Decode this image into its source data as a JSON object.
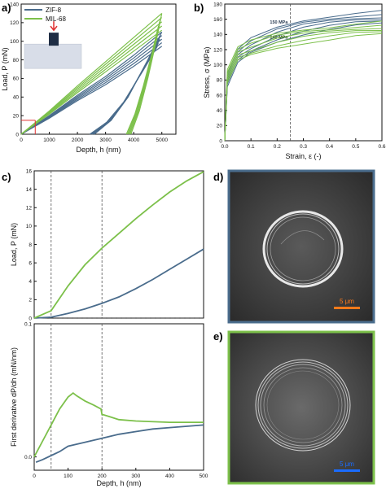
{
  "colors": {
    "zif": "#4a6c8c",
    "mil": "#7cc04a",
    "ref": "#e03030",
    "axis": "#111111"
  },
  "panel_labels": {
    "a": "a)",
    "b": "b)",
    "c": "c)",
    "d": "d)",
    "e": "e)"
  },
  "images": {
    "d": {
      "scale_bar": "5 μm",
      "frame_color": "#4a6c8c",
      "bar_color": "#ff7a1a"
    },
    "e": {
      "scale_bar": "5 μm",
      "frame_color": "#7cc04a",
      "bar_color": "#1a6cff"
    }
  },
  "chart_data": [
    {
      "id": "a",
      "type": "line",
      "xlabel": "Depth, h (nm)",
      "ylabel": "Load, P (mN)",
      "xlim": [
        0,
        5500
      ],
      "ylim": [
        0,
        140
      ],
      "xticks": [
        0,
        1000,
        2000,
        3000,
        4000,
        5000
      ],
      "yticks": [
        0,
        20,
        40,
        60,
        80,
        100,
        120,
        140
      ],
      "legend": {
        "placement": "top-left",
        "entries": [
          "ZIF-8",
          "MIL-68"
        ]
      },
      "inset": "indenter-schematic",
      "series": [
        {
          "name": "ZIF-8",
          "color_key": "zif",
          "loading": [
            [
              0,
              0
            ],
            [
              1000,
              20
            ],
            [
              2000,
              42
            ],
            [
              3000,
              62
            ],
            [
              4000,
              85
            ],
            [
              5000,
              110
            ]
          ],
          "unloading": [
            [
              5000,
              110
            ],
            [
              4500,
              80
            ],
            [
              3800,
              40
            ],
            [
              3200,
              15
            ],
            [
              2600,
              0
            ]
          ]
        },
        {
          "name": "MIL-68",
          "color_key": "mil",
          "loading": [
            [
              0,
              0
            ],
            [
              1000,
              25
            ],
            [
              2000,
              52
            ],
            [
              3000,
              78
            ],
            [
              4000,
              104
            ],
            [
              5000,
              130
            ]
          ],
          "unloading": [
            [
              5000,
              130
            ],
            [
              4800,
              100
            ],
            [
              4500,
              60
            ],
            [
              4200,
              25
            ],
            [
              3900,
              0
            ]
          ]
        }
      ]
    },
    {
      "id": "b",
      "type": "line",
      "xlabel": "Strain, ε (-)",
      "ylabel": "Stress, σ (MPa)",
      "xlim": [
        0,
        0.6
      ],
      "ylim": [
        0,
        180
      ],
      "xticks": [
        0.0,
        0.1,
        0.2,
        0.3,
        0.4,
        0.5,
        0.6
      ],
      "yticks": [
        0,
        20,
        40,
        60,
        80,
        100,
        120,
        140,
        160,
        180
      ],
      "annotations": [
        {
          "text": "150 MPa",
          "x": 0.25,
          "y": 150
        },
        {
          "text": "140 MPa",
          "x": 0.25,
          "y": 140
        }
      ],
      "dashed_x": 0.25,
      "series": [
        {
          "name": "ZIF-8",
          "color_key": "zif",
          "points": [
            [
              0,
              0
            ],
            [
              0.01,
              80
            ],
            [
              0.05,
              112
            ],
            [
              0.1,
              125
            ],
            [
              0.2,
              140
            ],
            [
              0.3,
              150
            ],
            [
              0.4,
              156
            ],
            [
              0.5,
              160
            ],
            [
              0.6,
              162
            ]
          ]
        },
        {
          "name": "MIL-68",
          "color_key": "mil",
          "points": [
            [
              0,
              0
            ],
            [
              0.01,
              85
            ],
            [
              0.05,
              115
            ],
            [
              0.1,
              122
            ],
            [
              0.2,
              132
            ],
            [
              0.3,
              138
            ],
            [
              0.4,
              142
            ],
            [
              0.5,
              146
            ],
            [
              0.6,
              148
            ]
          ]
        }
      ]
    },
    {
      "id": "c-top",
      "type": "line",
      "xlabel": "",
      "ylabel": "Load, P (mN)",
      "xlim": [
        0,
        500
      ],
      "ylim": [
        0,
        16
      ],
      "yticks": [
        0,
        2,
        4,
        6,
        8,
        10,
        12,
        14,
        16
      ],
      "dashed_x": [
        50,
        200
      ],
      "series": [
        {
          "name": "ZIF-8",
          "color_key": "zif",
          "points": [
            [
              0,
              0
            ],
            [
              50,
              0.1
            ],
            [
              100,
              0.5
            ],
            [
              150,
              1.0
            ],
            [
              200,
              1.6
            ],
            [
              250,
              2.3
            ],
            [
              300,
              3.2
            ],
            [
              350,
              4.2
            ],
            [
              400,
              5.3
            ],
            [
              450,
              6.4
            ],
            [
              500,
              7.5
            ]
          ]
        },
        {
          "name": "MIL-68",
          "color_key": "mil",
          "points": [
            [
              0,
              0
            ],
            [
              50,
              0.8
            ],
            [
              100,
              3.5
            ],
            [
              150,
              5.8
            ],
            [
              200,
              7.6
            ],
            [
              250,
              9.2
            ],
            [
              300,
              10.8
            ],
            [
              350,
              12.3
            ],
            [
              400,
              13.7
            ],
            [
              450,
              14.9
            ],
            [
              500,
              15.9
            ]
          ]
        }
      ]
    },
    {
      "id": "c-bottom",
      "type": "line",
      "xlabel": "Depth, h (nm)",
      "ylabel": "First derivative dP/dh (mN/nm)",
      "xlim": [
        0,
        500
      ],
      "ylim": [
        -0.01,
        0.1
      ],
      "xticks": [
        0,
        100,
        200,
        300,
        400,
        500
      ],
      "yticks": [
        0.0,
        0.1
      ],
      "dashed_x": [
        50,
        200
      ],
      "series": [
        {
          "name": "ZIF-8",
          "color_key": "zif",
          "points": [
            [
              5,
              -0.004
            ],
            [
              25,
              -0.002
            ],
            [
              50,
              0.001
            ],
            [
              75,
              0.004
            ],
            [
              100,
              0.008
            ],
            [
              150,
              0.011
            ],
            [
              200,
              0.014
            ],
            [
              250,
              0.017
            ],
            [
              300,
              0.019
            ],
            [
              350,
              0.021
            ],
            [
              400,
              0.022
            ],
            [
              450,
              0.023
            ],
            [
              500,
              0.024
            ]
          ]
        },
        {
          "name": "MIL-68",
          "color_key": "mil",
          "points": [
            [
              0,
              0
            ],
            [
              25,
              0.012
            ],
            [
              50,
              0.024
            ],
            [
              75,
              0.036
            ],
            [
              100,
              0.045
            ],
            [
              115,
              0.048
            ],
            [
              125,
              0.046
            ],
            [
              150,
              0.042
            ],
            [
              175,
              0.039
            ],
            [
              197,
              0.036
            ],
            [
              200,
              0.032
            ],
            [
              225,
              0.03
            ],
            [
              250,
              0.028
            ],
            [
              300,
              0.027
            ],
            [
              400,
              0.026
            ],
            [
              500,
              0.026
            ]
          ]
        }
      ]
    }
  ]
}
